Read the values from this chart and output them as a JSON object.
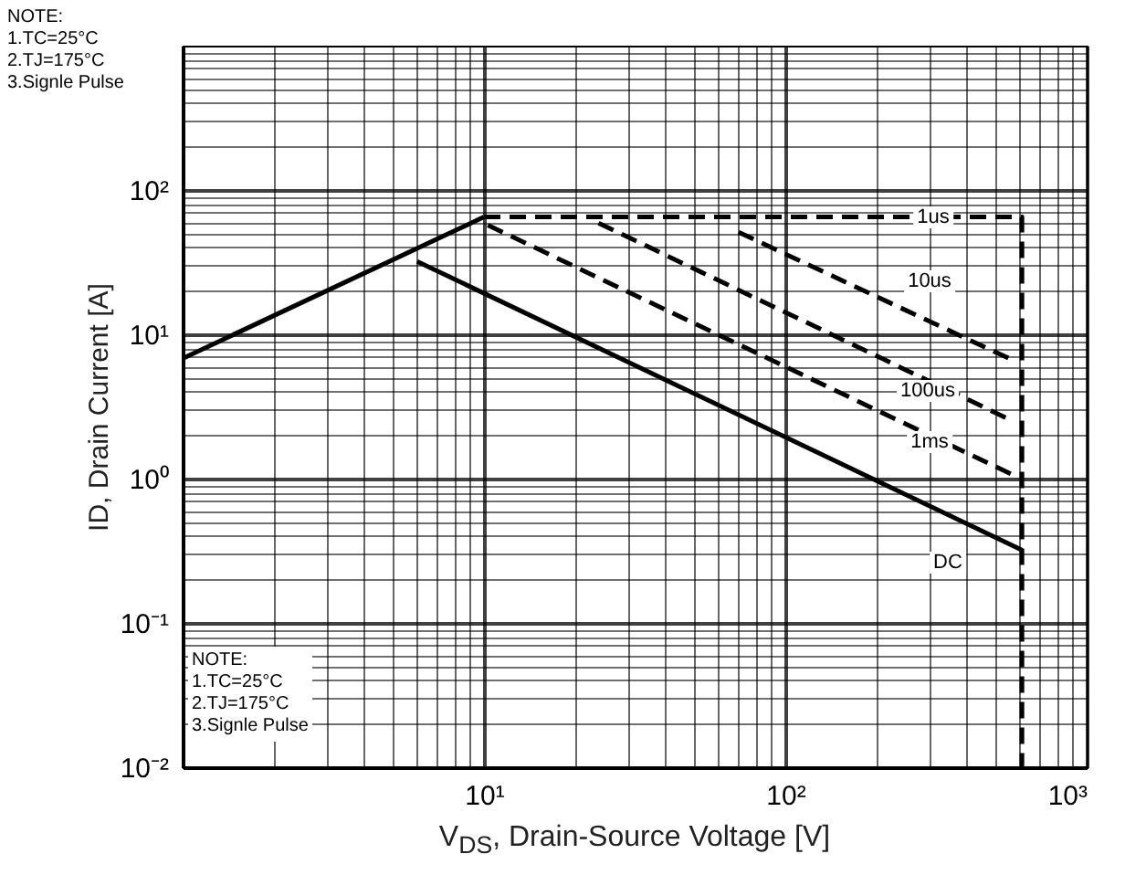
{
  "chart_data": {
    "type": "line",
    "xlabel": "V$_{DS}$, Drain-Source Voltage [V]",
    "ylabel": "ID, Drain Current [A]",
    "log": "xy",
    "grid": true,
    "xlim": [
      1,
      1000
    ],
    "ylim": [
      0.01,
      1000
    ],
    "xticks": [
      {
        "value": 1,
        "label": null
      },
      {
        "value": 2,
        "label": null
      },
      {
        "value": 3,
        "label": null
      },
      {
        "value": 4,
        "label": null
      },
      {
        "value": 5,
        "label": null
      },
      {
        "value": 6,
        "label": null
      },
      {
        "value": 7,
        "label": null
      },
      {
        "value": 8,
        "label": null
      },
      {
        "value": 9,
        "label": null
      },
      {
        "value": 10,
        "label": "10¹"
      },
      {
        "value": 20,
        "label": null
      },
      {
        "value": 30,
        "label": null
      },
      {
        "value": 40,
        "label": null
      },
      {
        "value": 50,
        "label": null
      },
      {
        "value": 60,
        "label": null
      },
      {
        "value": 70,
        "label": null
      },
      {
        "value": 80,
        "label": null
      },
      {
        "value": 90,
        "label": null
      },
      {
        "value": 100,
        "label": "10²"
      },
      {
        "value": 200,
        "label": null
      },
      {
        "value": 300,
        "label": null
      },
      {
        "value": 400,
        "label": null
      },
      {
        "value": 500,
        "label": null
      },
      {
        "value": 600,
        "label": null
      },
      {
        "value": 700,
        "label": null
      },
      {
        "value": 800,
        "label": null
      },
      {
        "value": 900,
        "label": null
      },
      {
        "value": 1000,
        "label": "10³"
      }
    ],
    "yticks": [
      {
        "value": 0.01,
        "label": "10⁻²"
      },
      {
        "value": 0.02,
        "label": null
      },
      {
        "value": 0.03,
        "label": null
      },
      {
        "value": 0.04,
        "label": null
      },
      {
        "value": 0.05,
        "label": null
      },
      {
        "value": 0.06,
        "label": null
      },
      {
        "value": 0.07,
        "label": null
      },
      {
        "value": 0.08,
        "label": null
      },
      {
        "value": 0.09,
        "label": null
      },
      {
        "value": 0.1,
        "label": "10⁻¹"
      },
      {
        "value": 0.2,
        "label": null
      },
      {
        "value": 0.3,
        "label": null
      },
      {
        "value": 0.4,
        "label": null
      },
      {
        "value": 0.5,
        "label": null
      },
      {
        "value": 0.6,
        "label": null
      },
      {
        "value": 0.7,
        "label": null
      },
      {
        "value": 0.8,
        "label": null
      },
      {
        "value": 0.9,
        "label": null
      },
      {
        "value": 1,
        "label": "10⁰"
      },
      {
        "value": 2,
        "label": null
      },
      {
        "value": 3,
        "label": null
      },
      {
        "value": 4,
        "label": null
      },
      {
        "value": 5,
        "label": null
      },
      {
        "value": 6,
        "label": null
      },
      {
        "value": 7,
        "label": null
      },
      {
        "value": 8,
        "label": null
      },
      {
        "value": 9,
        "label": null
      },
      {
        "value": 10,
        "label": "10¹"
      },
      {
        "value": 20,
        "label": null
      },
      {
        "value": 30,
        "label": null
      },
      {
        "value": 40,
        "label": null
      },
      {
        "value": 50,
        "label": null
      },
      {
        "value": 60,
        "label": null
      },
      {
        "value": 70,
        "label": null
      },
      {
        "value": 80,
        "label": null
      },
      {
        "value": 90,
        "label": null
      },
      {
        "value": 100,
        "label": "10²"
      },
      {
        "value": 200,
        "label": null
      },
      {
        "value": 300,
        "label": null
      },
      {
        "value": 400,
        "label": null
      },
      {
        "value": 500,
        "label": null
      },
      {
        "value": 600,
        "label": null
      },
      {
        "value": 700,
        "label": null
      },
      {
        "value": 800,
        "label": null
      },
      {
        "value": 900,
        "label": null
      },
      {
        "value": 1000,
        "label": null
      }
    ],
    "series": [
      {
        "color": "#000000",
        "line_style": "solid",
        "x": [
          1,
          10
        ],
        "values": [
          6.8,
          65
        ]
      },
      {
        "color": "#000000",
        "line_style": "dashed",
        "x": [
          10,
          610,
          610
        ],
        "values": [
          65,
          65,
          0.01
        ]
      },
      {
        "color": "#000000",
        "line_style": "dashed",
        "x": [
          70,
          570
        ],
        "values": [
          51,
          6.6
        ]
      },
      {
        "color": "#000000",
        "line_style": "dashed",
        "x": [
          24,
          570
        ],
        "values": [
          59,
          2.5
        ]
      },
      {
        "color": "#000000",
        "line_style": "dashed",
        "x": [
          10.3,
          570
        ],
        "values": [
          57,
          1.06
        ]
      },
      {
        "color": "#000000",
        "line_style": "solid",
        "x": [
          6,
          610
        ],
        "values": [
          32,
          0.32
        ]
      }
    ],
    "annotations": [
      "NOTE:\n1.TC=25°C\n2.TJ=175°C\n3.Signle Pulse",
      "NOTE:\n1.TC=25°C\n2.TJ=175°C\n3.Signle Pulse",
      "1us",
      "10us",
      "100us",
      "1ms",
      "DC"
    ]
  }
}
